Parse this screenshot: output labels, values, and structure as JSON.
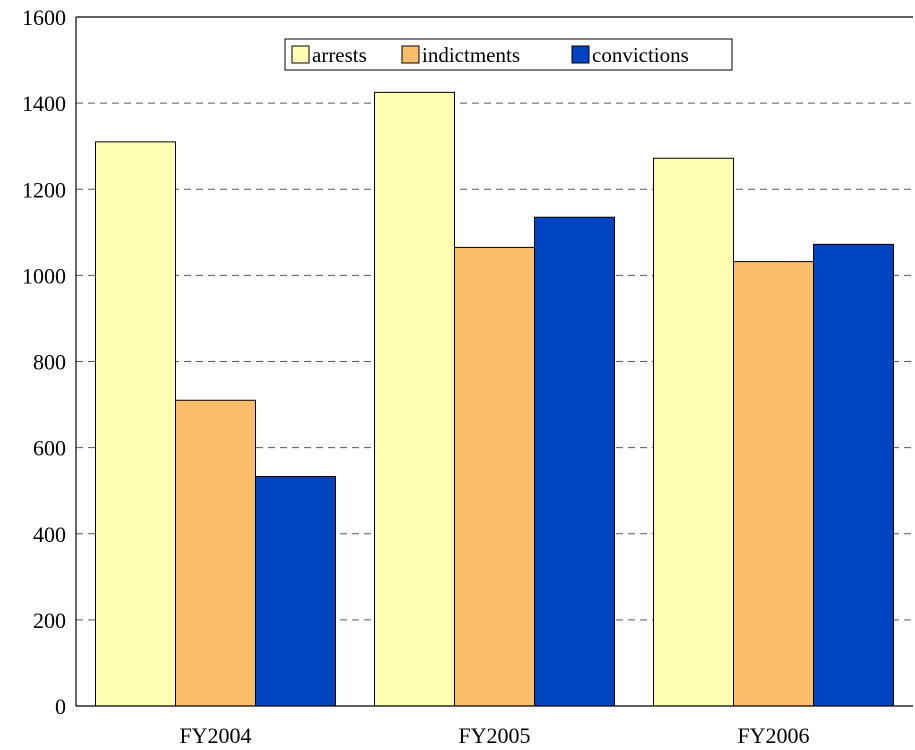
{
  "chart_data": {
    "type": "bar",
    "categories": [
      "FY2004",
      "FY2005",
      "FY2006"
    ],
    "series": [
      {
        "name": "arrests",
        "values": [
          1310,
          1425,
          1272
        ],
        "color": "#FFFFB3"
      },
      {
        "name": "indictments",
        "values": [
          710,
          1065,
          1032
        ],
        "color": "#FCBE6B"
      },
      {
        "name": "convictions",
        "values": [
          533,
          1135,
          1072
        ],
        "color": "#0044C2"
      }
    ],
    "title": "",
    "xlabel": "",
    "ylabel": "",
    "ylim": [
      0,
      1600
    ],
    "yticks": [
      "0",
      "200",
      "400",
      "600",
      "800",
      "1000",
      "1200",
      "1400",
      "1600"
    ],
    "grid": true,
    "legend_position": "top-center"
  }
}
